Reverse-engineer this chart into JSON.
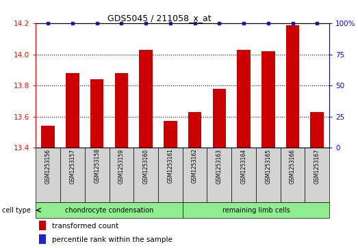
{
  "title": "GDS5045 / 211058_x_at",
  "categories": [
    "GSM1253156",
    "GSM1253157",
    "GSM1253158",
    "GSM1253159",
    "GSM1253160",
    "GSM1253161",
    "GSM1253162",
    "GSM1253163",
    "GSM1253164",
    "GSM1253165",
    "GSM1253166",
    "GSM1253167"
  ],
  "values": [
    13.54,
    13.88,
    13.84,
    13.88,
    14.03,
    13.57,
    13.63,
    13.78,
    14.03,
    14.02,
    14.19,
    13.63
  ],
  "percentile_values": [
    100,
    100,
    100,
    100,
    100,
    100,
    100,
    100,
    100,
    100,
    100,
    100
  ],
  "bar_color": "#cc0000",
  "dot_color": "#2222cc",
  "ylim_left": [
    13.4,
    14.2
  ],
  "ylim_right": [
    0,
    100
  ],
  "yticks_left": [
    13.4,
    13.6,
    13.8,
    14.0,
    14.2
  ],
  "yticks_right": [
    0,
    25,
    50,
    75,
    100
  ],
  "ytick_labels_right": [
    "0",
    "25",
    "50",
    "75",
    "100%"
  ],
  "group1_label": "chondrocyte condensation",
  "group2_label": "remaining limb cells",
  "group1_indices": [
    0,
    1,
    2,
    3,
    4,
    5
  ],
  "group2_indices": [
    6,
    7,
    8,
    9,
    10,
    11
  ],
  "cell_type_label": "cell type",
  "legend1": "transformed count",
  "legend2": "percentile rank within the sample",
  "background_color": "#ffffff",
  "plot_bg_color": "#ffffff",
  "group1_color": "#90ee90",
  "group2_color": "#90ee90",
  "label_box_color": "#d3d3d3",
  "bar_width": 0.55
}
